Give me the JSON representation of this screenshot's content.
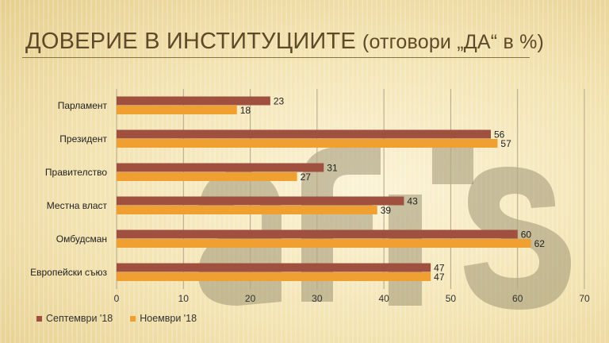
{
  "slide": {
    "title_main": "ДОВЕРИЕ В ИНСТИТУЦИИТЕ",
    "title_sub": "(отговори „ДА“ в %)"
  },
  "chart_data": {
    "type": "bar",
    "orientation": "horizontal",
    "categories": [
      "Парламент",
      "Президент",
      "Правителство",
      "Местна власт",
      "Омбудсман",
      "Европейски съюз"
    ],
    "series": [
      {
        "name": "Септември '18",
        "color": "#a0503e",
        "values": [
          23,
          56,
          31,
          43,
          60,
          47
        ]
      },
      {
        "name": "Ноември '18",
        "color": "#f0a030",
        "values": [
          18,
          57,
          27,
          39,
          62,
          47
        ]
      }
    ],
    "xlim": [
      0,
      70
    ],
    "xticks": [
      0,
      10,
      20,
      30,
      40,
      50,
      60,
      70
    ],
    "grid": true,
    "data_labels": true,
    "legend_position": "bottom-left"
  },
  "watermark": {
    "text": "afis"
  }
}
